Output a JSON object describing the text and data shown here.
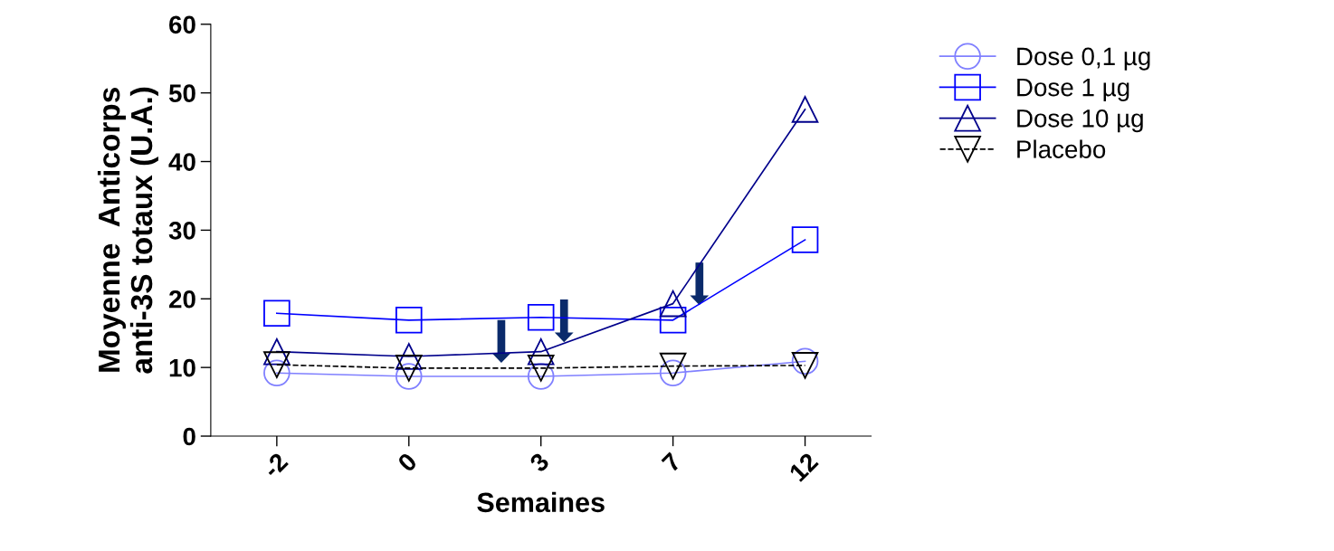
{
  "chart_data": {
    "type": "line",
    "xlabel": "Semaines",
    "ylabel": "Moyenne  Anticorps\nanti-3S totaux (U.A.)",
    "categories": [
      "-2",
      "0",
      "3",
      "7",
      "12"
    ],
    "ylim": [
      0,
      60
    ],
    "yticks": [
      0,
      10,
      20,
      30,
      40,
      50,
      60
    ],
    "grid": false,
    "legend": "top right",
    "series": [
      {
        "name": "Dose 0,1 µg",
        "color": "#8080ff",
        "marker": "circle",
        "values": [
          9.2,
          8.7,
          8.7,
          9.2,
          10.9
        ]
      },
      {
        "name": "Dose 1 µg",
        "color": "#0000ff",
        "marker": "square",
        "values": [
          17.9,
          16.9,
          17.3,
          16.9,
          28.6
        ]
      },
      {
        "name": "Dose 10 µg",
        "color": "#00008b",
        "marker": "triangle",
        "values": [
          12.3,
          11.6,
          12.3,
          19.3,
          47.6
        ]
      },
      {
        "name": "Placebo",
        "color": "#000000",
        "marker": "triangle_down",
        "line_style": "dashed",
        "values": [
          10.4,
          9.9,
          9.9,
          10.2,
          10.3
        ]
      }
    ]
  }
}
